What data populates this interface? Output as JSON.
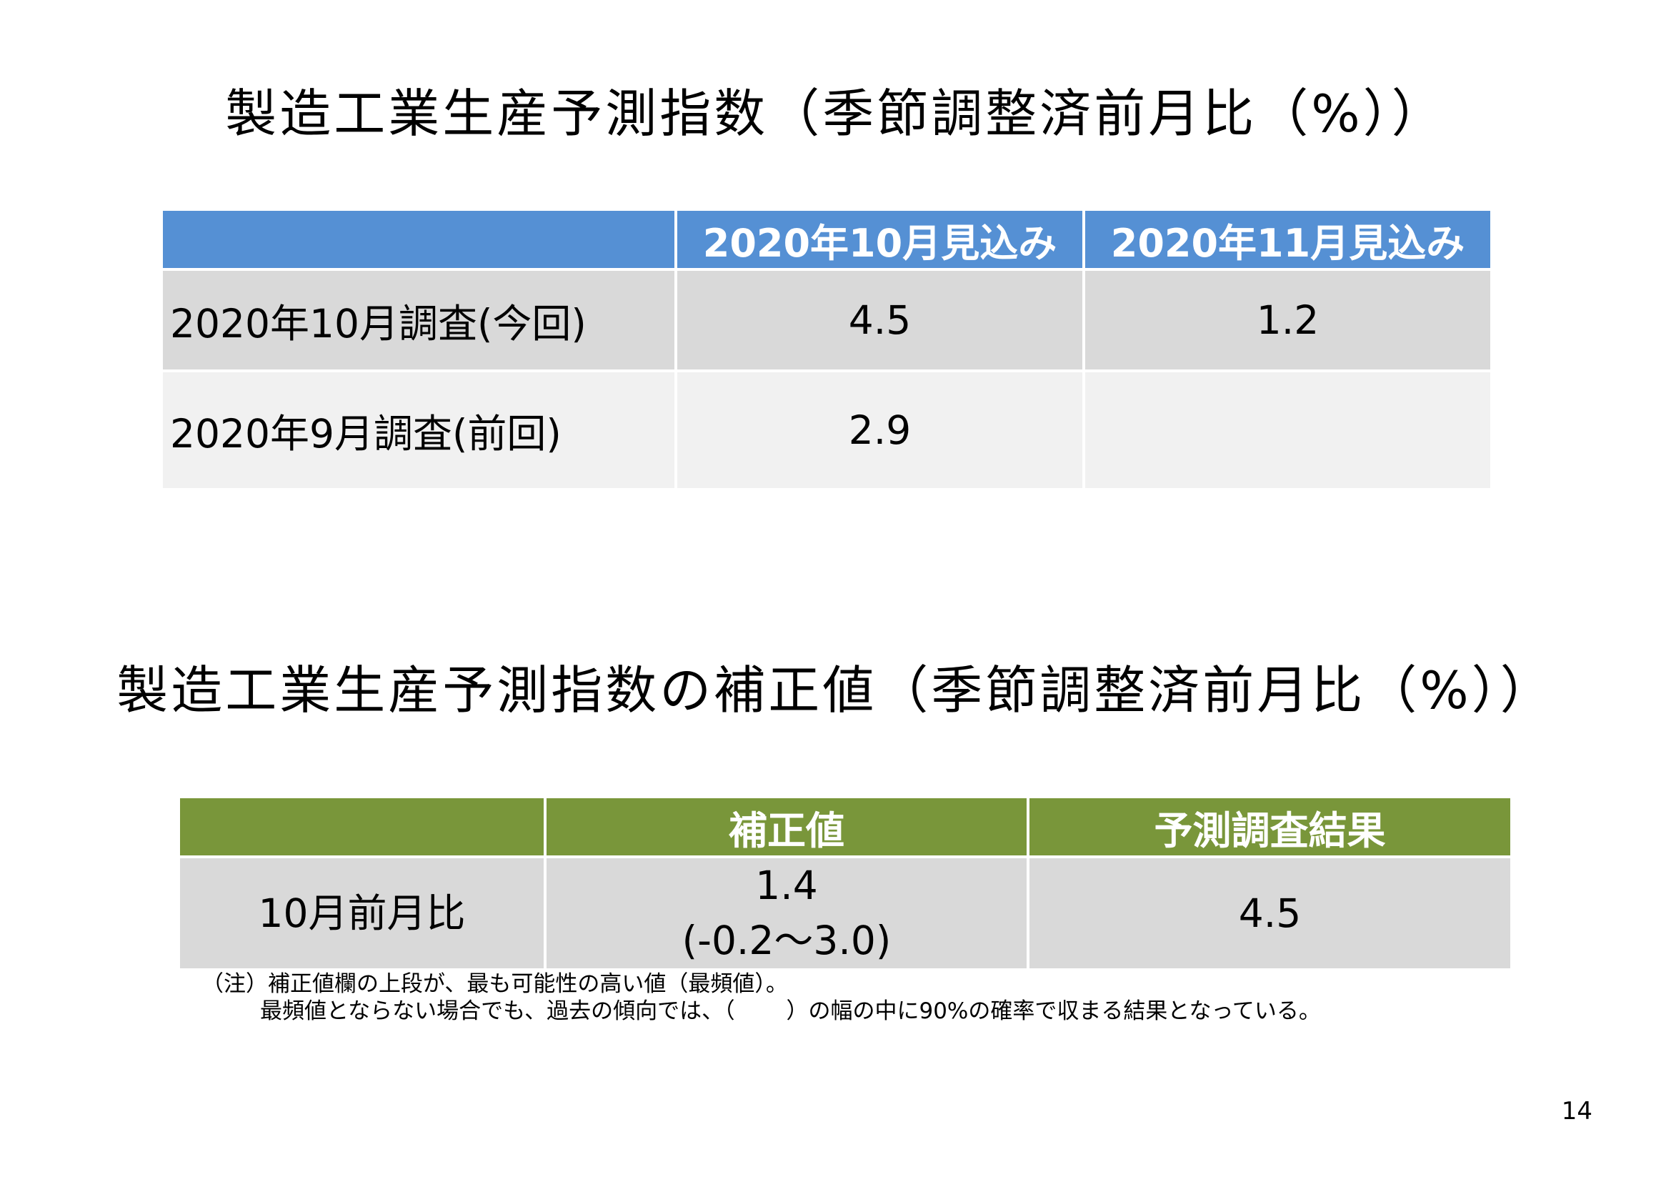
{
  "table1": {
    "title": "製造工業生産予測指数（季節調整済前月比（%））",
    "headers": [
      "",
      "2020年10月見込み",
      "2020年11月見込み"
    ],
    "rows": [
      {
        "label": "2020年10月調査(今回)",
        "oct": "4.5",
        "nov": "1.2"
      },
      {
        "label": "2020年9月調査(前回)",
        "oct": "2.9",
        "nov": ""
      }
    ]
  },
  "table2": {
    "title": "製造工業生産予測指数の補正値（季節調整済前月比（%））",
    "headers": [
      "",
      "補正値",
      "予測調査結果"
    ],
    "row": {
      "label": "10月前月比",
      "corrected_value": "1.4",
      "corrected_range": "(-0.2～3.0)",
      "survey_result": "4.5"
    }
  },
  "notes": {
    "line1": "（注）補正値欄の上段が、最も可能性の高い値（最頻値）。",
    "line2": "最頻値とならない場合でも、過去の傾向では、（　　 ）の幅の中に90%の確率で収まる結果となっている。"
  },
  "page_number": "14"
}
